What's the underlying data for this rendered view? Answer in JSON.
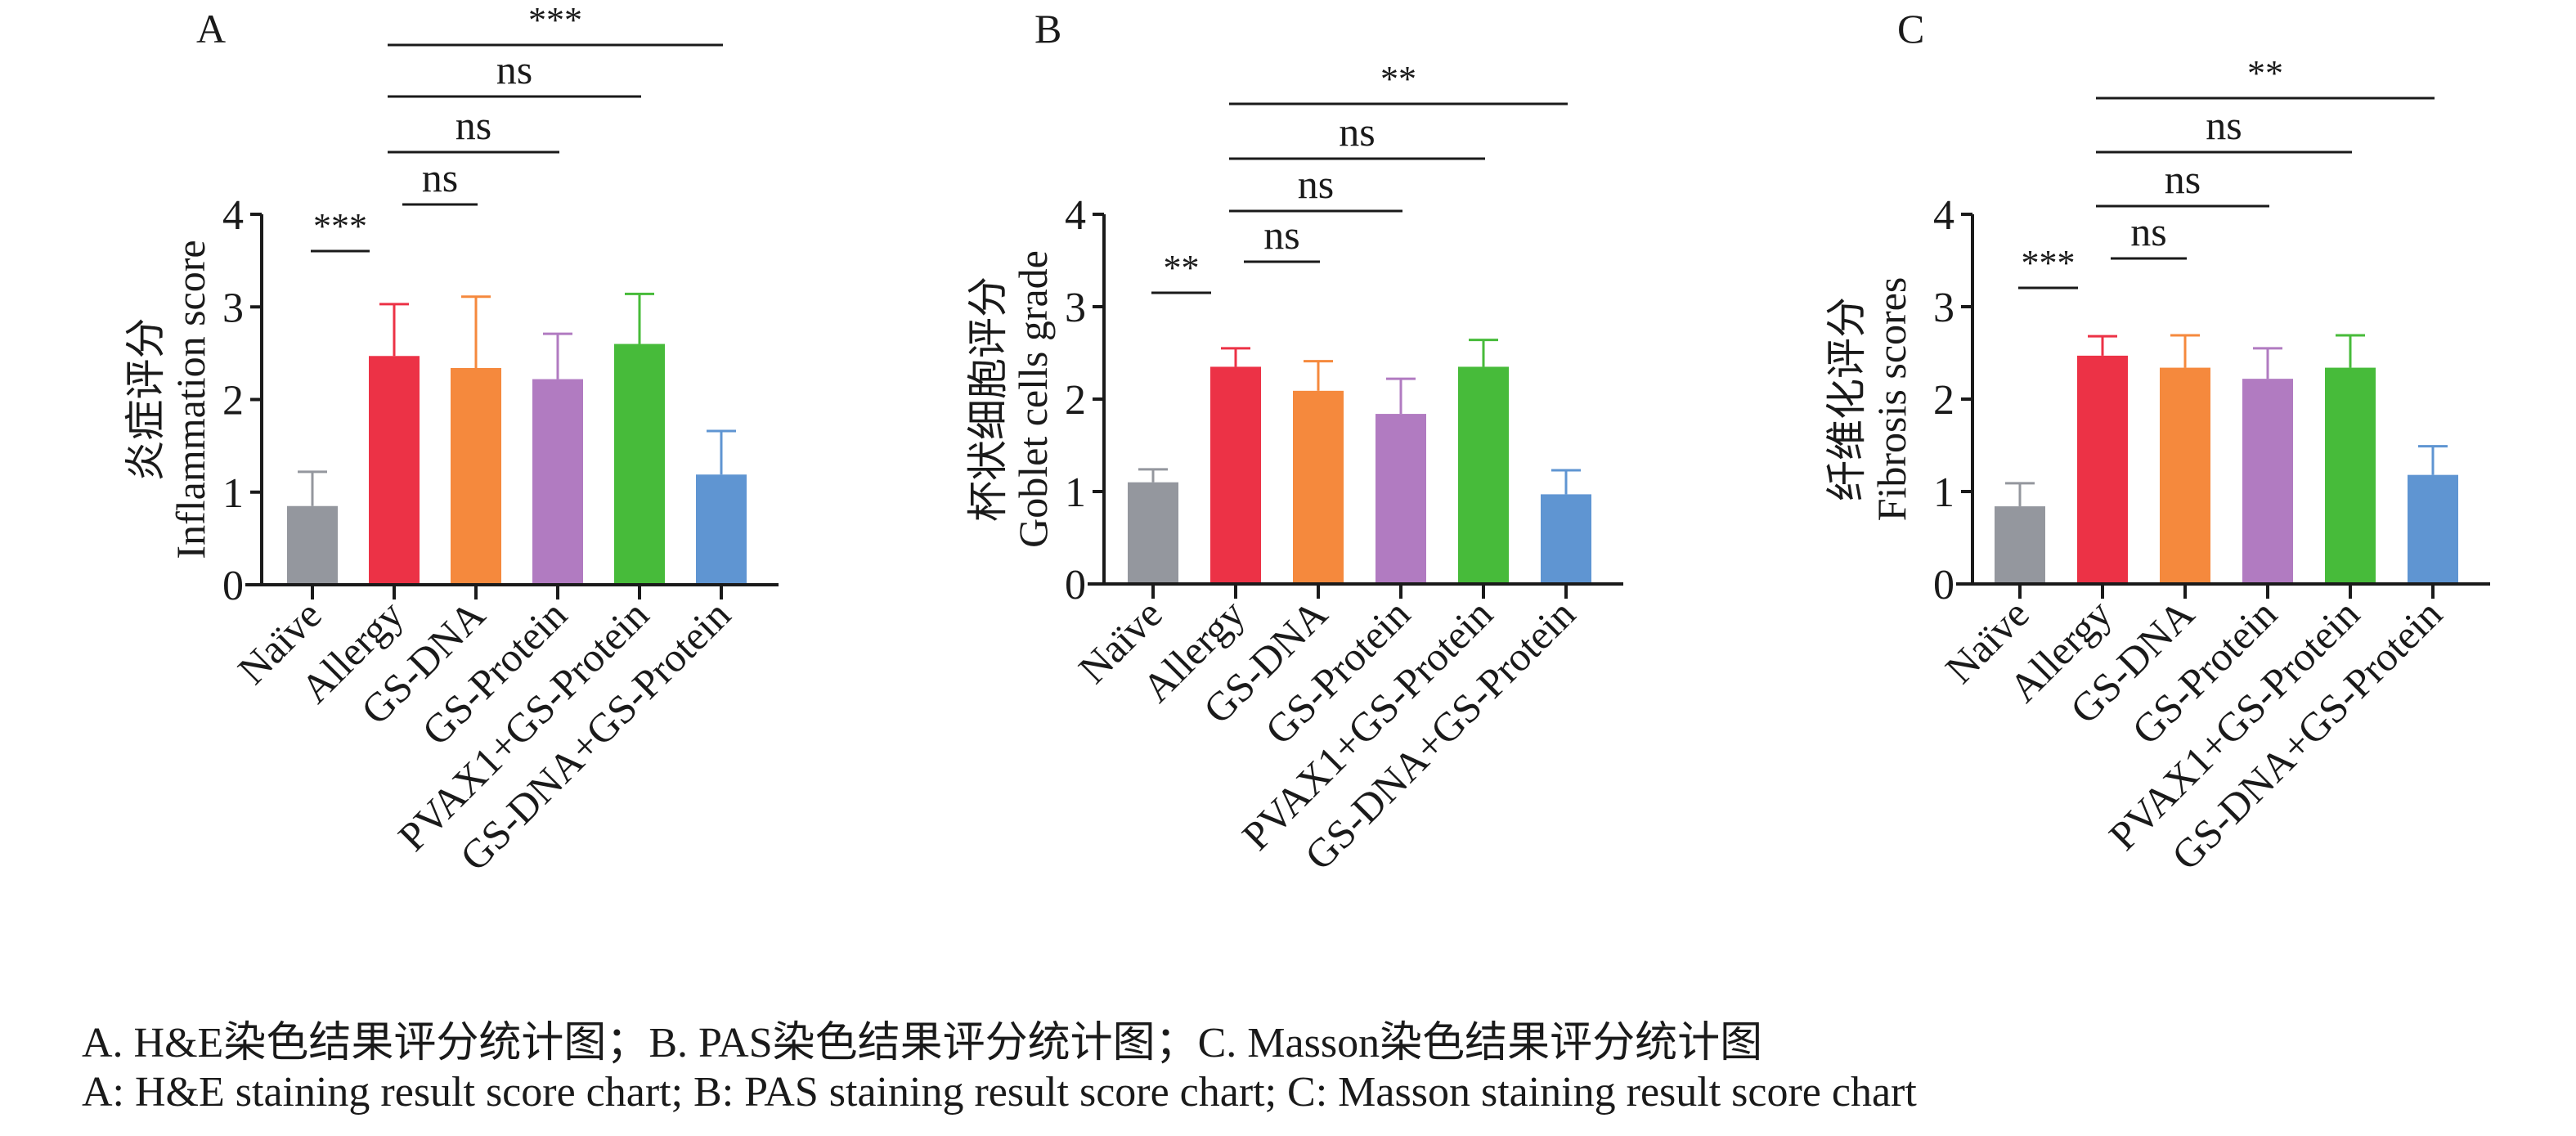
{
  "chart_data": [
    {
      "type": "bar",
      "panel_label": "A",
      "ylabel_cn": "炎症评分",
      "ylabel_en": "Inflammation score",
      "ylim": [
        0,
        4
      ],
      "yticks": [
        0,
        1,
        2,
        3,
        4
      ],
      "categories": [
        "Naïve",
        "Allergy",
        "GS-DNA",
        "GS-Protein",
        "PVAX1+GS-Protein",
        "GS-DNA+GS-Protein"
      ],
      "values": [
        0.85,
        2.47,
        2.34,
        2.22,
        2.6,
        1.19
      ],
      "error_upper": [
        1.22,
        3.03,
        3.11,
        2.71,
        3.14,
        1.66
      ],
      "colors": [
        "#94979e",
        "#ec3246",
        "#f5893d",
        "#b17bc1",
        "#47bb3a",
        "#5f95d2"
      ],
      "significance": [
        {
          "from": 0,
          "to": 1,
          "label": "***"
        },
        {
          "from": 1,
          "to": 2,
          "label": "ns"
        },
        {
          "from": 1,
          "to": 3,
          "label": "ns"
        },
        {
          "from": 1,
          "to": 4,
          "label": "ns"
        },
        {
          "from": 1,
          "to": 5,
          "label": "***"
        }
      ]
    },
    {
      "type": "bar",
      "panel_label": "B",
      "ylabel_cn": "杯状细胞评分",
      "ylabel_en": "Goblet cells grade",
      "ylim": [
        0,
        4
      ],
      "yticks": [
        0,
        1,
        2,
        3,
        4
      ],
      "categories": [
        "Naïve",
        "Allergy",
        "GS-DNA",
        "GS-Protein",
        "PVAX1+GS-Protein",
        "GS-DNA+GS-Protein"
      ],
      "values": [
        1.1,
        2.35,
        2.09,
        1.84,
        2.35,
        0.97
      ],
      "error_upper": [
        1.24,
        2.55,
        2.41,
        2.22,
        2.64,
        1.23
      ],
      "colors": [
        "#94979e",
        "#ec3246",
        "#f5893d",
        "#b17bc1",
        "#47bb3a",
        "#5f95d2"
      ],
      "significance": [
        {
          "from": 0,
          "to": 1,
          "label": "**"
        },
        {
          "from": 1,
          "to": 2,
          "label": "ns"
        },
        {
          "from": 1,
          "to": 3,
          "label": "ns"
        },
        {
          "from": 1,
          "to": 4,
          "label": "ns"
        },
        {
          "from": 1,
          "to": 5,
          "label": "**"
        }
      ]
    },
    {
      "type": "bar",
      "panel_label": "C",
      "ylabel_cn": "纤维化评分",
      "ylabel_en": "Fibrosis scores",
      "ylim": [
        0,
        4
      ],
      "yticks": [
        0,
        1,
        2,
        3,
        4
      ],
      "categories": [
        "Naïve",
        "Allergy",
        "GS-DNA",
        "GS-Protein",
        "PVAX1+GS-Protein",
        "GS-DNA+GS-Protein"
      ],
      "values": [
        0.84,
        2.47,
        2.34,
        2.22,
        2.34,
        1.18
      ],
      "error_upper": [
        1.09,
        2.68,
        2.69,
        2.55,
        2.69,
        1.49
      ],
      "colors": [
        "#94979e",
        "#ec3246",
        "#f5893d",
        "#b17bc1",
        "#47bb3a",
        "#5f95d2"
      ],
      "significance": [
        {
          "from": 0,
          "to": 1,
          "label": "***"
        },
        {
          "from": 1,
          "to": 2,
          "label": "ns"
        },
        {
          "from": 1,
          "to": 3,
          "label": "ns"
        },
        {
          "from": 1,
          "to": 4,
          "label": "ns"
        },
        {
          "from": 1,
          "to": 5,
          "label": "**"
        }
      ]
    }
  ],
  "caption": {
    "line_cn": "A. H&E染色结果评分统计图；B. PAS染色结果评分统计图；C. Masson染色结果评分统计图",
    "line_en": "A: H&E staining result score chart; B: PAS staining result score chart; C: Masson staining result score chart"
  }
}
